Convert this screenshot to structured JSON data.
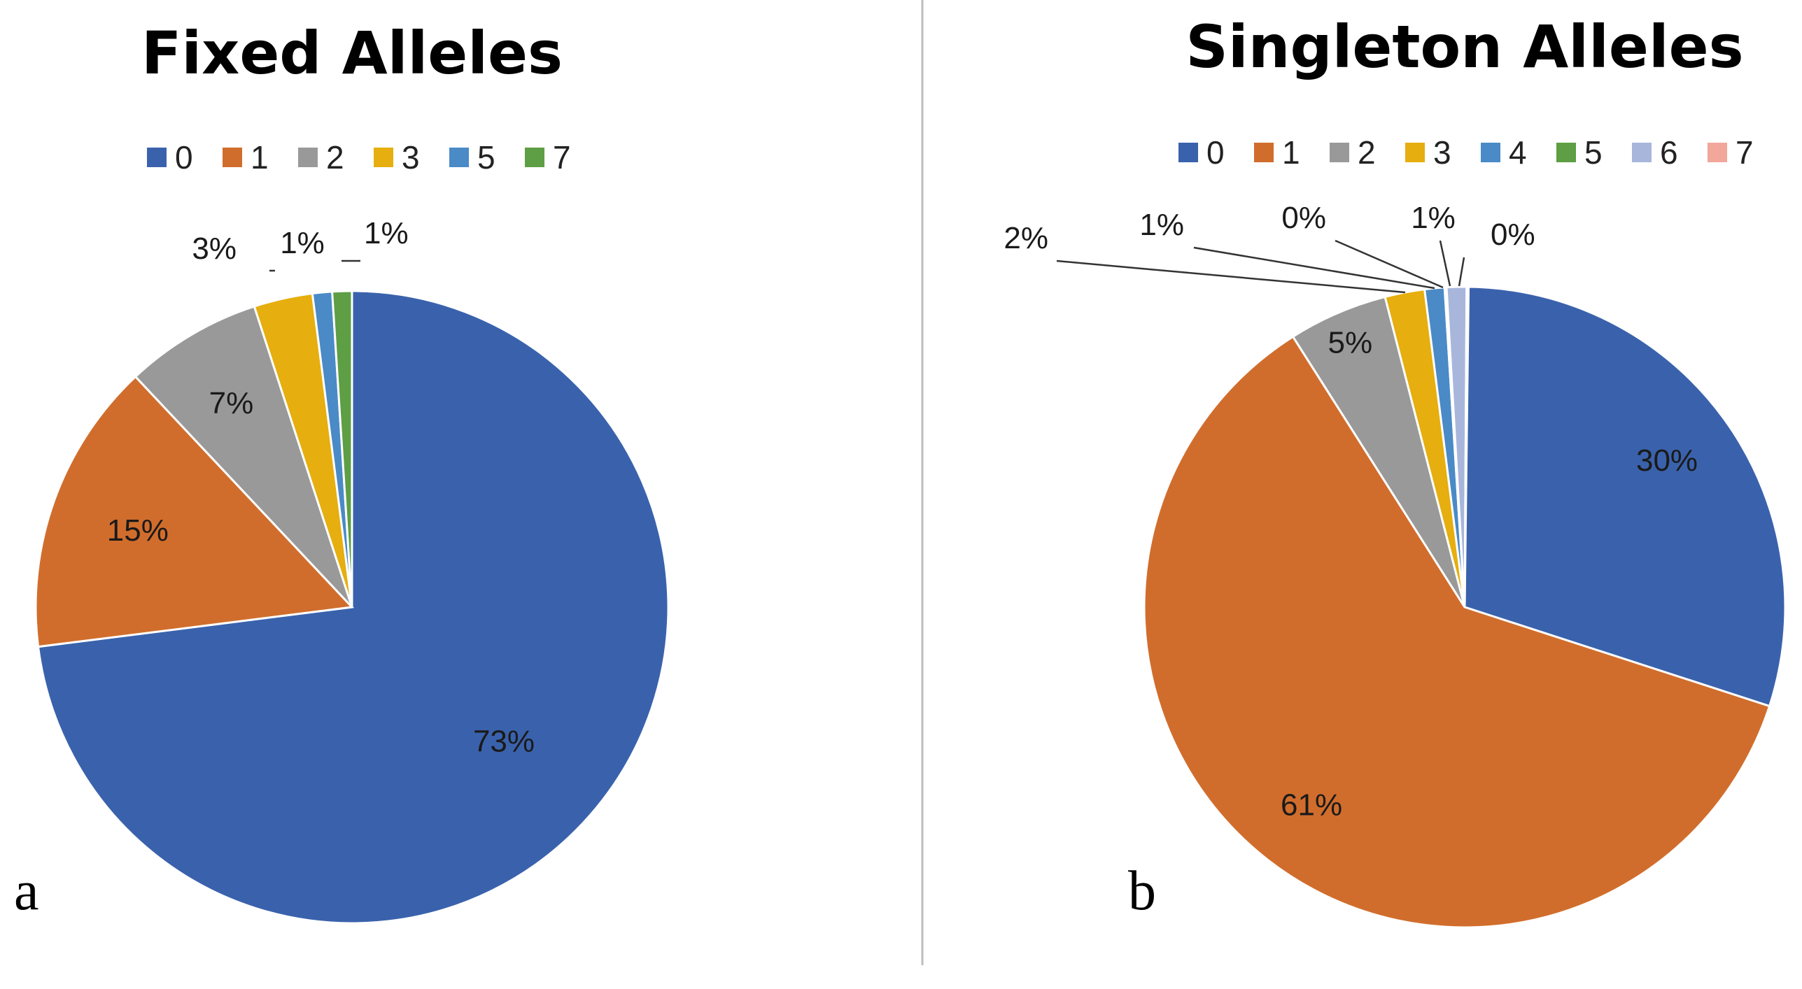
{
  "chart_data": [
    {
      "type": "pie",
      "panel": "a",
      "title": "Fixed Alleles",
      "legend_position": "top",
      "categories": [
        "0",
        "1",
        "2",
        "3",
        "5",
        "7"
      ],
      "values": [
        73,
        15,
        7,
        3,
        1,
        1
      ],
      "data_labels": [
        "73%",
        "15%",
        "7%",
        "3%",
        "1%",
        "1%"
      ],
      "colors": [
        "#3A62AC",
        "#D16D2C",
        "#999999",
        "#E6AE0E",
        "#4A8AC6",
        "#5E9E44"
      ],
      "start_angle_deg": 0,
      "direction": "clockwise"
    },
    {
      "type": "pie",
      "panel": "b",
      "title": "Singleton Alleles",
      "legend_position": "top",
      "categories": [
        "0",
        "1",
        "2",
        "3",
        "4",
        "5",
        "6",
        "7"
      ],
      "values": [
        30,
        61,
        5,
        2,
        1,
        0,
        1,
        0
      ],
      "data_labels": [
        "30%",
        "61%",
        "5%",
        "2%",
        "1%",
        "0%",
        "1%",
        "0%"
      ],
      "colors": [
        "#3A62AC",
        "#D16D2C",
        "#999999",
        "#E6AE0E",
        "#4A8AC6",
        "#5E9E44",
        "#A9B6DC",
        "#F2A79B"
      ],
      "start_angle_deg": 0,
      "direction": "clockwise"
    }
  ]
}
